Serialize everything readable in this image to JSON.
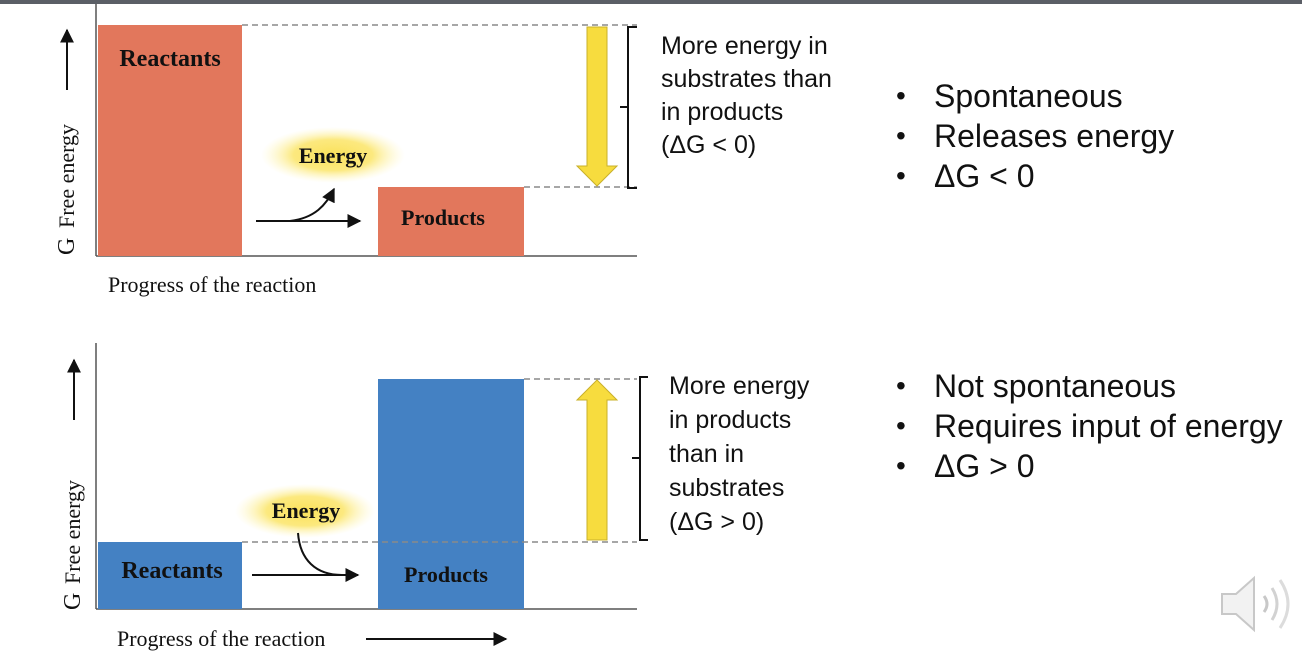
{
  "panels": [
    {
      "id": "exergonic",
      "reactants_label": "Reactants",
      "products_label": "Products",
      "energy_label": "Energy",
      "y_axis_label": "Free energy",
      "y_axis_symbol": "G",
      "x_axis_label": "Progress of the reaction",
      "bar_color": "#e2775c",
      "arrow_direction": "down",
      "levels": {
        "reactants": 1.0,
        "products": 0.29
      },
      "annotation_lines": [
        "More energy in",
        "substrates than",
        "in products",
        "(ΔG < 0)"
      ],
      "bullets": [
        "Spontaneous",
        "Releases energy",
        "ΔG < 0"
      ]
    },
    {
      "id": "endergonic",
      "reactants_label": "Reactants",
      "products_label": "Products",
      "energy_label": "Energy",
      "y_axis_label": "Free energy",
      "y_axis_symbol": "G",
      "x_axis_label": "Progress of the reaction",
      "bar_color": "#4481c3",
      "arrow_direction": "up",
      "levels": {
        "reactants": 0.29,
        "products": 1.0
      },
      "annotation_lines": [
        "More energy",
        "in products",
        "than in",
        "substrates",
        "(ΔG > 0)"
      ],
      "bullets": [
        "Not spontaneous",
        "Requires input of energy",
        "ΔG > 0"
      ]
    }
  ],
  "colors": {
    "arrow_fill": "#f7dc3e",
    "glow": "#fbe15a",
    "dashed": "#8a8a8a"
  },
  "audio_icon": "speaker-icon"
}
